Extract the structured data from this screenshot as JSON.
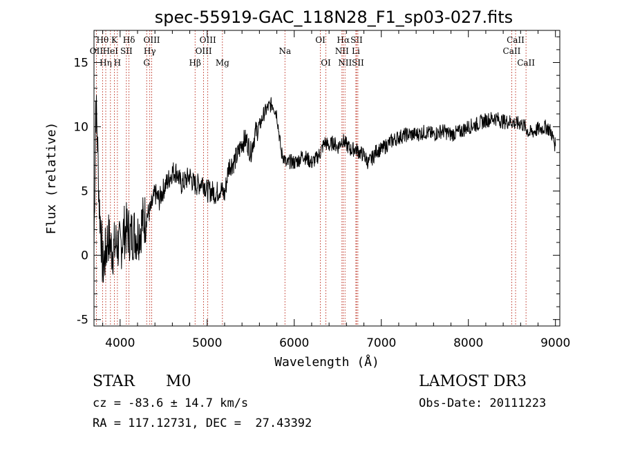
{
  "chart_data": {
    "type": "line",
    "title": "spec-55919-GAC_118N28_F1_sp03-027.fits",
    "xlabel": "Wavelength (Å)",
    "ylabel": "Flux (relative)",
    "xlim": [
      3700,
      9050
    ],
    "ylim": [
      -5.5,
      17.5
    ],
    "xticks": [
      4000,
      5000,
      6000,
      7000,
      8000,
      9000
    ],
    "yticks": [
      -5,
      0,
      5,
      10,
      15
    ],
    "series": [
      {
        "name": "spectrum",
        "x": [
          3700,
          3720,
          3740,
          3760,
          3780,
          3800,
          3830,
          3860,
          3900,
          3930,
          3960,
          4000,
          4040,
          4080,
          4120,
          4160,
          4200,
          4250,
          4300,
          4350,
          4400,
          4450,
          4500,
          4550,
          4600,
          4650,
          4700,
          4750,
          4800,
          4850,
          4900,
          4950,
          5000,
          5050,
          5100,
          5150,
          5200,
          5250,
          5300,
          5350,
          5400,
          5450,
          5500,
          5550,
          5600,
          5650,
          5700,
          5750,
          5800,
          5850,
          5890,
          5910,
          5950,
          6000,
          6050,
          6100,
          6150,
          6200,
          6250,
          6300,
          6350,
          6400,
          6450,
          6500,
          6550,
          6600,
          6650,
          6700,
          6750,
          6800,
          6850,
          6900,
          6950,
          7000,
          7100,
          7200,
          7300,
          7400,
          7500,
          7600,
          7700,
          7800,
          7900,
          8000,
          8100,
          8200,
          8300,
          8400,
          8500,
          8550,
          8600,
          8650,
          8700,
          8800,
          8900,
          8950,
          9000
        ],
        "y": [
          0.5,
          12,
          9,
          4,
          2,
          -1,
          0,
          1.5,
          0.5,
          0.5,
          1,
          0.5,
          1.8,
          2,
          1.5,
          1.8,
          1.5,
          2.5,
          3,
          3.5,
          4.8,
          4.3,
          5.2,
          5.8,
          6.5,
          6.5,
          5.5,
          5.8,
          6.2,
          5.5,
          5.5,
          5.8,
          5,
          5,
          4.8,
          5.2,
          4.7,
          7,
          7.2,
          7.8,
          8.8,
          9,
          8,
          9.5,
          10,
          11,
          11.5,
          11.8,
          11,
          8,
          7.5,
          7,
          7.3,
          7.2,
          7.4,
          7.8,
          7.5,
          7.2,
          7.5,
          8,
          8.8,
          8.5,
          8.8,
          8.4,
          9,
          8.6,
          8.2,
          8.3,
          8,
          7.8,
          7.2,
          7.6,
          8.2,
          8.2,
          8.8,
          9.2,
          9.4,
          9.4,
          9.6,
          9.4,
          9.7,
          9.4,
          9.6,
          10,
          10.2,
          10.5,
          10.7,
          10.4,
          10.4,
          10.2,
          10.3,
          10,
          9.5,
          9.8,
          10,
          9.6,
          8.5
        ]
      }
    ],
    "spectral_lines": [
      {
        "label": "Hθ",
        "wavelength": 3798,
        "row": 1
      },
      {
        "label": "OII",
        "wavelength": 3727,
        "row": 2
      },
      {
        "label": "Hη",
        "wavelength": 3835,
        "row": 3
      },
      {
        "label": "K",
        "wavelength": 3934,
        "row": 1
      },
      {
        "label": "HeI",
        "wavelength": 3889,
        "row": 2
      },
      {
        "label": "H",
        "wavelength": 3969,
        "row": 3
      },
      {
        "label": "Hδ",
        "wavelength": 4102,
        "row": 1
      },
      {
        "label": "SII",
        "wavelength": 4072,
        "row": 2
      },
      {
        "label": "OIII",
        "wavelength": 4363,
        "row": 1
      },
      {
        "label": "Hγ",
        "wavelength": 4341,
        "row": 2
      },
      {
        "label": "G",
        "wavelength": 4305,
        "row": 3
      },
      {
        "label": "OIII",
        "wavelength": 5007,
        "row": 1
      },
      {
        "label": "OIII",
        "wavelength": 4959,
        "row": 2
      },
      {
        "label": "Hβ",
        "wavelength": 4861,
        "row": 3
      },
      {
        "label": "Mg",
        "wavelength": 5175,
        "row": 3
      },
      {
        "label": "Na",
        "wavelength": 5893,
        "row": 2
      },
      {
        "label": "OI",
        "wavelength": 6300,
        "row": 1
      },
      {
        "label": "OI",
        "wavelength": 6363,
        "row": 3
      },
      {
        "label": "Hα",
        "wavelength": 6563,
        "row": 1
      },
      {
        "label": "NII",
        "wavelength": 6548,
        "row": 2
      },
      {
        "label": "NII",
        "wavelength": 6583,
        "row": 3
      },
      {
        "label": "SII",
        "wavelength": 6716,
        "row": 1
      },
      {
        "label": "Li",
        "wavelength": 6708,
        "row": 2
      },
      {
        "label": "SII",
        "wavelength": 6731,
        "row": 3
      },
      {
        "label": "CaII",
        "wavelength": 8542,
        "row": 1
      },
      {
        "label": "CaII",
        "wavelength": 8498,
        "row": 2
      },
      {
        "label": "CaII",
        "wavelength": 8662,
        "row": 3
      }
    ]
  },
  "info": {
    "object_class": "STAR",
    "subclass": "M0",
    "survey": "LAMOST DR3",
    "redshift": "cz = -83.6 ± 14.7 km/s",
    "obs_date": "Obs-Date: 20111223",
    "coords": "RA = 117.12731, DEC =  27.43392"
  }
}
